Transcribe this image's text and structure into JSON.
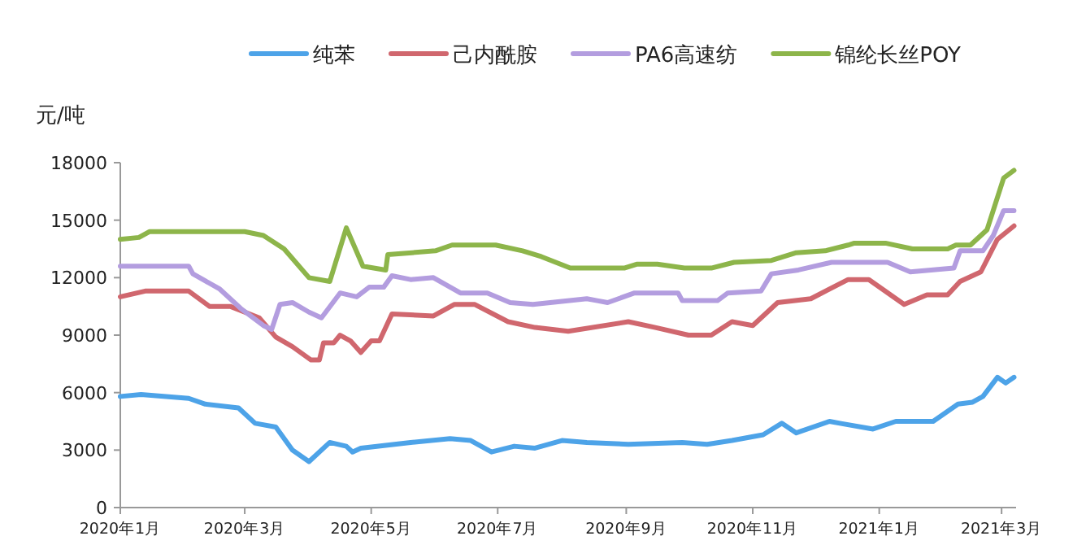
{
  "chart_data": {
    "type": "line",
    "ylabel": "元/吨",
    "legend": "top",
    "grid": false,
    "marker": "none",
    "line_style": "solid",
    "xlim": [
      "2020-01-01",
      "2021-03-08"
    ],
    "xticks": [
      {
        "value": "2020-01-01",
        "label": "2020年1月"
      },
      {
        "value": "2020-03-01",
        "label": "2020年3月"
      },
      {
        "value": "2020-05-01",
        "label": "2020年5月"
      },
      {
        "value": "2020-07-01",
        "label": "2020年7月"
      },
      {
        "value": "2020-09-01",
        "label": "2020年9月"
      },
      {
        "value": "2020-11-01",
        "label": "2020年11月"
      },
      {
        "value": "2021-01-01",
        "label": "2021年1月"
      },
      {
        "value": "2021-03-01",
        "label": "2021年3月"
      }
    ],
    "ylim": [
      0,
      18000
    ],
    "yticks": [
      0,
      3000,
      6000,
      9000,
      12000,
      15000,
      18000
    ],
    "series": [
      {
        "name": "纯苯",
        "color": "#4da3e8",
        "x": [
          "2020-01-01",
          "2020-01-11",
          "2020-02-03",
          "2020-02-11",
          "2020-02-27",
          "2020-03-06",
          "2020-03-16",
          "2020-03-24",
          "2020-04-01",
          "2020-04-11",
          "2020-04-19",
          "2020-04-22",
          "2020-04-26",
          "2020-05-20",
          "2020-06-08",
          "2020-06-18",
          "2020-06-28",
          "2020-07-09",
          "2020-07-19",
          "2020-08-01",
          "2020-08-13",
          "2020-09-02",
          "2020-09-28",
          "2020-10-10",
          "2020-10-22",
          "2020-11-06",
          "2020-11-15",
          "2020-11-22",
          "2020-12-08",
          "2020-12-13",
          "2020-12-29",
          "2021-01-09",
          "2021-01-27",
          "2021-02-08",
          "2021-02-15",
          "2021-02-20",
          "2021-02-27",
          "2021-03-03",
          "2021-03-07"
        ],
        "values": [
          5800,
          5900,
          5700,
          5400,
          5200,
          4400,
          4200,
          3000,
          2400,
          3400,
          3200,
          2900,
          3100,
          3400,
          3600,
          3500,
          2900,
          3200,
          3100,
          3500,
          3400,
          3300,
          3400,
          3300,
          3500,
          3800,
          4400,
          3900,
          4500,
          4400,
          4100,
          4500,
          4500,
          5400,
          5500,
          5800,
          6800,
          6500,
          6800
        ]
      },
      {
        "name": "己内酰胺",
        "color": "#d0676e",
        "x": [
          "2020-01-01",
          "2020-01-13",
          "2020-02-03",
          "2020-02-13",
          "2020-02-23",
          "2020-03-08",
          "2020-03-16",
          "2020-03-24",
          "2020-04-02",
          "2020-04-06",
          "2020-04-08",
          "2020-04-13",
          "2020-04-16",
          "2020-04-21",
          "2020-04-26",
          "2020-05-01",
          "2020-05-05",
          "2020-05-11",
          "2020-05-31",
          "2020-06-10",
          "2020-06-20",
          "2020-07-06",
          "2020-07-19",
          "2020-08-04",
          "2020-09-02",
          "2020-09-15",
          "2020-10-01",
          "2020-10-12",
          "2020-10-22",
          "2020-11-01",
          "2020-11-13",
          "2020-11-29",
          "2020-12-17",
          "2020-12-27",
          "2021-01-13",
          "2021-01-24",
          "2021-02-03",
          "2021-02-09",
          "2021-02-19",
          "2021-02-27",
          "2021-03-07"
        ],
        "values": [
          11000,
          11300,
          11300,
          10500,
          10500,
          9900,
          8900,
          8400,
          7700,
          7700,
          8600,
          8600,
          9000,
          8700,
          8100,
          8700,
          8700,
          10100,
          10000,
          10600,
          10600,
          9700,
          9400,
          9200,
          9700,
          9400,
          9000,
          9000,
          9700,
          9500,
          10700,
          10900,
          11900,
          11900,
          10600,
          11100,
          11100,
          11800,
          12300,
          14000,
          14700
        ]
      },
      {
        "name": "PA6高速纺",
        "color": "#b39ddf",
        "x": [
          "2020-01-01",
          "2020-02-03",
          "2020-02-05",
          "2020-02-18",
          "2020-02-28",
          "2020-03-10",
          "2020-03-14",
          "2020-03-18",
          "2020-03-24",
          "2020-04-01",
          "2020-04-07",
          "2020-04-16",
          "2020-04-24",
          "2020-04-30",
          "2020-05-07",
          "2020-05-11",
          "2020-05-20",
          "2020-05-31",
          "2020-06-13",
          "2020-06-26",
          "2020-07-07",
          "2020-07-18",
          "2020-08-13",
          "2020-08-18",
          "2020-08-23",
          "2020-09-05",
          "2020-09-26",
          "2020-09-28",
          "2020-10-15",
          "2020-10-20",
          "2020-11-05",
          "2020-11-10",
          "2020-11-23",
          "2020-12-09",
          "2021-01-05",
          "2021-01-16",
          "2021-02-06",
          "2021-02-09",
          "2021-02-20",
          "2021-02-25",
          "2021-03-02",
          "2021-03-07"
        ],
        "values": [
          12600,
          12600,
          12200,
          11400,
          10400,
          9500,
          9300,
          10600,
          10700,
          10200,
          9900,
          11200,
          11000,
          11500,
          11500,
          12100,
          11900,
          12000,
          11200,
          11200,
          10700,
          10600,
          10900,
          10800,
          10700,
          11200,
          11200,
          10800,
          10800,
          11200,
          11300,
          12200,
          12400,
          12800,
          12800,
          12300,
          12500,
          13400,
          13400,
          14200,
          15500,
          15500
        ]
      },
      {
        "name": "锦纶长丝POY",
        "color": "#8db54a",
        "x": [
          "2020-01-01",
          "2020-01-10",
          "2020-01-15",
          "2020-03-01",
          "2020-03-10",
          "2020-03-20",
          "2020-04-01",
          "2020-04-11",
          "2020-04-19",
          "2020-04-27",
          "2020-05-08",
          "2020-05-09",
          "2020-06-01",
          "2020-06-09",
          "2020-06-30",
          "2020-07-13",
          "2020-07-22",
          "2020-08-05",
          "2020-08-31",
          "2020-09-06",
          "2020-09-16",
          "2020-09-29",
          "2020-10-12",
          "2020-10-23",
          "2020-11-10",
          "2020-11-22",
          "2020-12-06",
          "2020-12-17",
          "2020-12-20",
          "2021-01-04",
          "2021-01-17",
          "2021-02-03",
          "2021-02-07",
          "2021-02-14",
          "2021-02-22",
          "2021-03-02",
          "2021-03-07"
        ],
        "values": [
          14000,
          14100,
          14400,
          14400,
          14200,
          13500,
          12000,
          11800,
          14600,
          12600,
          12400,
          13200,
          13400,
          13700,
          13700,
          13400,
          13100,
          12500,
          12500,
          12700,
          12700,
          12500,
          12500,
          12800,
          12900,
          13300,
          13400,
          13700,
          13800,
          13800,
          13500,
          13500,
          13700,
          13700,
          14500,
          17200,
          17600
        ]
      }
    ]
  }
}
